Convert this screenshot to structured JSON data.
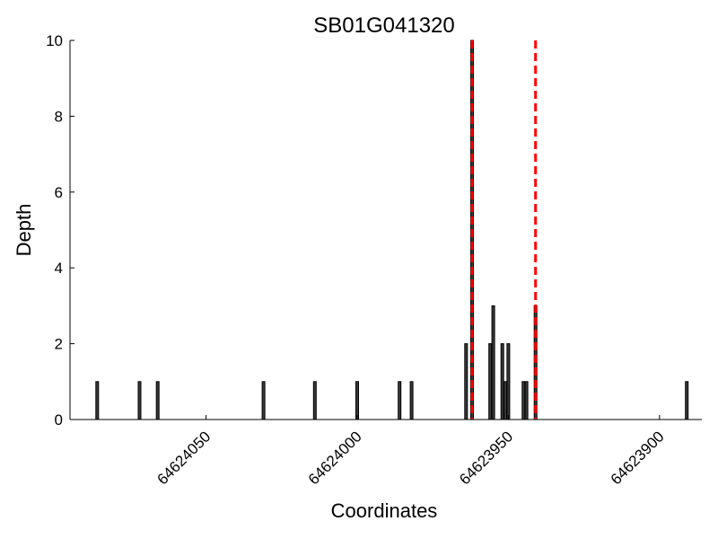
{
  "chart_data": {
    "type": "bar",
    "title": "SB01G041320",
    "xlabel": "Coordinates",
    "ylabel": "Depth",
    "xlim": [
      64624095,
      64623886
    ],
    "ylim": [
      0,
      10
    ],
    "x_reversed": true,
    "grid": false,
    "xticks": [
      64624050,
      64624000,
      64623950,
      64623900
    ],
    "yticks": [
      0,
      2,
      4,
      6,
      8,
      10
    ],
    "points": [
      {
        "x": 64624086,
        "y": 1
      },
      {
        "x": 64624072,
        "y": 1
      },
      {
        "x": 64624066,
        "y": 1
      },
      {
        "x": 64624031,
        "y": 1
      },
      {
        "x": 64624014,
        "y": 1
      },
      {
        "x": 64624000,
        "y": 1
      },
      {
        "x": 64623986,
        "y": 1
      },
      {
        "x": 64623982,
        "y": 1
      },
      {
        "x": 64623964,
        "y": 2
      },
      {
        "x": 64623962,
        "y": 10
      },
      {
        "x": 64623956,
        "y": 2
      },
      {
        "x": 64623955,
        "y": 3
      },
      {
        "x": 64623952,
        "y": 2
      },
      {
        "x": 64623951,
        "y": 1
      },
      {
        "x": 64623950,
        "y": 2
      },
      {
        "x": 64623945,
        "y": 1
      },
      {
        "x": 64623944,
        "y": 1
      },
      {
        "x": 64623941,
        "y": 3
      },
      {
        "x": 64623891,
        "y": 1
      }
    ],
    "reference_lines": [
      {
        "x": 64623962,
        "color": "#ff0000",
        "style": "dashed"
      },
      {
        "x": 64623941,
        "color": "#ff0000",
        "style": "dashed"
      }
    ],
    "bar_color": "#3a3a3a"
  }
}
